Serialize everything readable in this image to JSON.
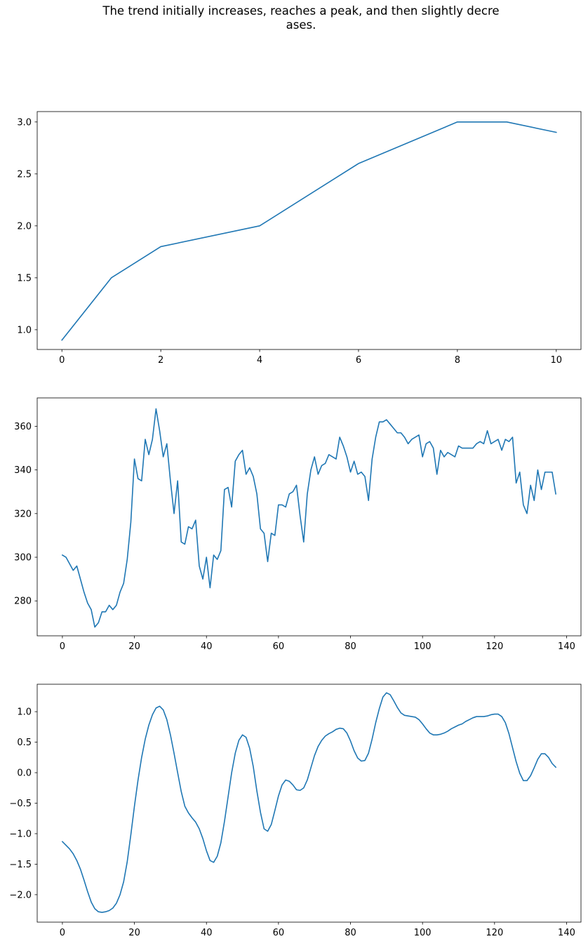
{
  "title_lines": [
    "The trend initially increases, reaches a peak, and then slightly decre",
    "ases."
  ],
  "colors": {
    "line": "#1f77b4",
    "axes": "#000000"
  },
  "chart_data": [
    {
      "type": "line",
      "x": [
        0,
        1,
        2,
        4,
        6,
        8,
        9,
        10
      ],
      "series": [
        {
          "values": [
            0.9,
            1.5,
            1.8,
            2.0,
            2.6,
            3.0,
            3.0,
            2.9
          ]
        }
      ],
      "xlim": [
        -0.5,
        10.5
      ],
      "ylim": [
        0.81,
        3.1
      ],
      "xticks": [
        0,
        2,
        4,
        6,
        8,
        10
      ],
      "yticks": [
        1.0,
        1.5,
        2.0,
        2.5,
        3.0
      ],
      "ytick_decimals": 1,
      "grid": false
    },
    {
      "type": "line",
      "x_start": 0,
      "series": [
        {
          "values": [
            301,
            300,
            297,
            294,
            296,
            290,
            284,
            279,
            276,
            268,
            270,
            275,
            275,
            278,
            276,
            278,
            284,
            288,
            299,
            316,
            345,
            336,
            335,
            354,
            347,
            354,
            368,
            358,
            346,
            352,
            335,
            320,
            335,
            307,
            306,
            314,
            313,
            317,
            296,
            290,
            300,
            286,
            301,
            299,
            303,
            331,
            332,
            323,
            344,
            347,
            349,
            338,
            341,
            337,
            329,
            313,
            311,
            298,
            311,
            310,
            324,
            324,
            323,
            329,
            330,
            333,
            319,
            307,
            329,
            340,
            346,
            338,
            342,
            343,
            347,
            346,
            345,
            355,
            351,
            346,
            339,
            344,
            338,
            339,
            337,
            326,
            345,
            355,
            362,
            362,
            363,
            361,
            359,
            357,
            357,
            355,
            352,
            354,
            355,
            356,
            346,
            352,
            353,
            350,
            338,
            349,
            346,
            348,
            347,
            346,
            351,
            350,
            350,
            350,
            350,
            352,
            353,
            352,
            358,
            352,
            353,
            354,
            349,
            354,
            353,
            355,
            334,
            339,
            324,
            320,
            333,
            326,
            340,
            331,
            339,
            339,
            339,
            329
          ]
        }
      ],
      "xlim": [
        -7,
        144
      ],
      "ylim": [
        264,
        373
      ],
      "xticks": [
        0,
        20,
        40,
        60,
        80,
        100,
        120,
        140
      ],
      "yticks": [
        280,
        300,
        320,
        340,
        360
      ],
      "ytick_decimals": 0,
      "grid": false
    },
    {
      "type": "line",
      "x_start": 0,
      "series": [
        {
          "values": [
            -1.13,
            -1.19,
            -1.25,
            -1.33,
            -1.44,
            -1.58,
            -1.76,
            -1.95,
            -2.12,
            -2.23,
            -2.28,
            -2.29,
            -2.28,
            -2.26,
            -2.22,
            -2.14,
            -2.0,
            -1.79,
            -1.46,
            -1.02,
            -0.55,
            -0.12,
            0.25,
            0.55,
            0.78,
            0.95,
            1.06,
            1.09,
            1.03,
            0.87,
            0.62,
            0.32,
            0.0,
            -0.31,
            -0.55,
            -0.66,
            -0.74,
            -0.81,
            -0.92,
            -1.08,
            -1.28,
            -1.44,
            -1.47,
            -1.37,
            -1.15,
            -0.8,
            -0.4,
            0.0,
            0.32,
            0.53,
            0.62,
            0.58,
            0.4,
            0.1,
            -0.3,
            -0.65,
            -0.92,
            -0.96,
            -0.85,
            -0.62,
            -0.38,
            -0.2,
            -0.12,
            -0.14,
            -0.2,
            -0.28,
            -0.29,
            -0.25,
            -0.12,
            0.08,
            0.28,
            0.43,
            0.53,
            0.6,
            0.64,
            0.67,
            0.71,
            0.73,
            0.72,
            0.65,
            0.52,
            0.36,
            0.24,
            0.19,
            0.2,
            0.32,
            0.55,
            0.82,
            1.05,
            1.24,
            1.31,
            1.28,
            1.18,
            1.07,
            0.98,
            0.94,
            0.93,
            0.92,
            0.91,
            0.87,
            0.8,
            0.72,
            0.65,
            0.62,
            0.62,
            0.63,
            0.65,
            0.68,
            0.72,
            0.75,
            0.78,
            0.8,
            0.84,
            0.87,
            0.9,
            0.92,
            0.92,
            0.92,
            0.93,
            0.95,
            0.96,
            0.96,
            0.92,
            0.82,
            0.64,
            0.41,
            0.18,
            -0.01,
            -0.13,
            -0.13,
            -0.05,
            0.08,
            0.22,
            0.31,
            0.31,
            0.25,
            0.15,
            0.09
          ]
        }
      ],
      "xlim": [
        -7,
        144
      ],
      "ylim": [
        -2.45,
        1.45
      ],
      "xticks": [
        0,
        20,
        40,
        60,
        80,
        100,
        120,
        140
      ],
      "yticks": [
        -2.0,
        -1.5,
        -1.0,
        -0.5,
        0.0,
        0.5,
        1.0
      ],
      "ytick_decimals": 1,
      "grid": false
    }
  ]
}
